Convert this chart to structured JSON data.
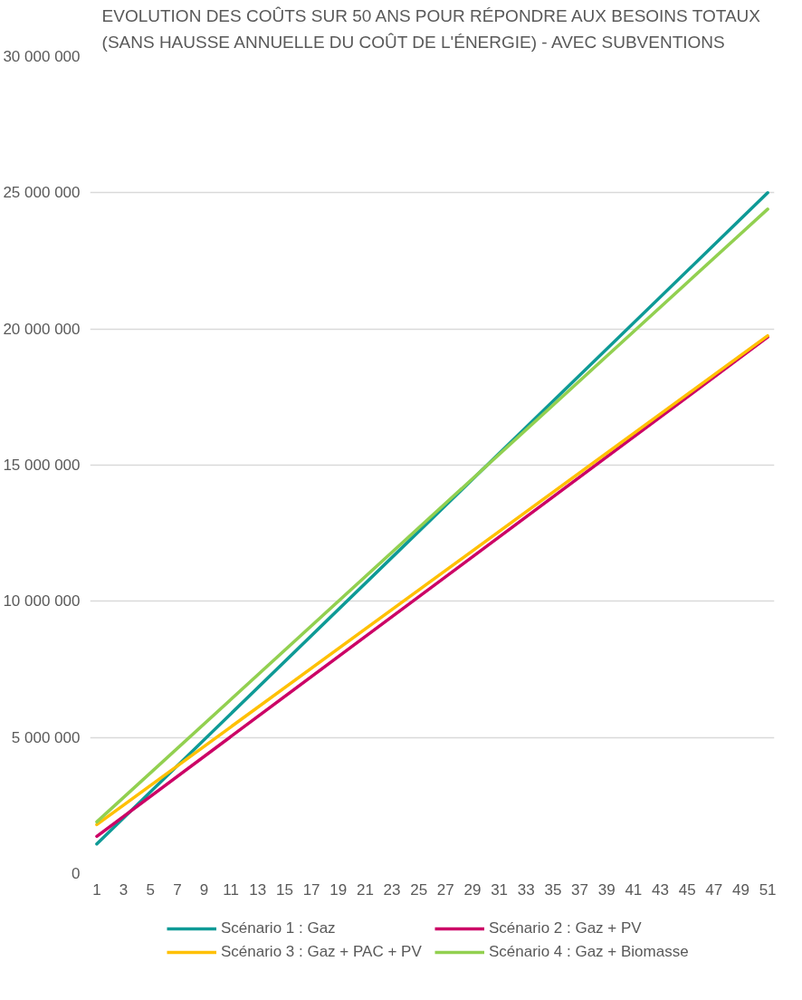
{
  "chart_data": {
    "type": "line",
    "title": "EVOLUTION DES COÛTS SUR 50 ANS POUR RÉPONDRE AUX BESOINS TOTAUX\n(SANS HAUSSE ANNUELLE DU COÛT DE L'ÉNERGIE) - AVEC SUBVENTIONS",
    "x": [
      1,
      51
    ],
    "xlim": [
      0.5,
      51.5
    ],
    "xticks": [
      1,
      3,
      5,
      7,
      9,
      11,
      13,
      15,
      17,
      19,
      21,
      23,
      25,
      27,
      29,
      31,
      33,
      35,
      37,
      39,
      41,
      43,
      45,
      47,
      49,
      51
    ],
    "ylim": [
      0,
      30000000
    ],
    "yticks": [
      {
        "value": 0,
        "label": "0"
      },
      {
        "value": 5000000,
        "label": "5 000 000"
      },
      {
        "value": 10000000,
        "label": "10 000 000"
      },
      {
        "value": 15000000,
        "label": "15 000 000"
      },
      {
        "value": 20000000,
        "label": "20 000 000"
      },
      {
        "value": 25000000,
        "label": "25 000 000"
      },
      {
        "value": 30000000,
        "label": "30 000 000"
      }
    ],
    "grid": "y",
    "legend": "bottom",
    "line_style": "solid",
    "marker": "none",
    "series": [
      {
        "name": "Scénario 1 : Gaz",
        "color": "#0e9a96",
        "values": [
          1090000,
          25000000
        ]
      },
      {
        "name": "Scénario 2 : Gaz + PV",
        "color": "#cc0066",
        "values": [
          1370000,
          19700000
        ]
      },
      {
        "name": "Scénario 3 : Gaz + PAC + PV",
        "color": "#ffc000",
        "values": [
          1800000,
          19750000
        ]
      },
      {
        "name": "Scénario 4 : Gaz + Biomasse",
        "color": "#92d050",
        "values": [
          1900000,
          24400000
        ]
      }
    ]
  }
}
